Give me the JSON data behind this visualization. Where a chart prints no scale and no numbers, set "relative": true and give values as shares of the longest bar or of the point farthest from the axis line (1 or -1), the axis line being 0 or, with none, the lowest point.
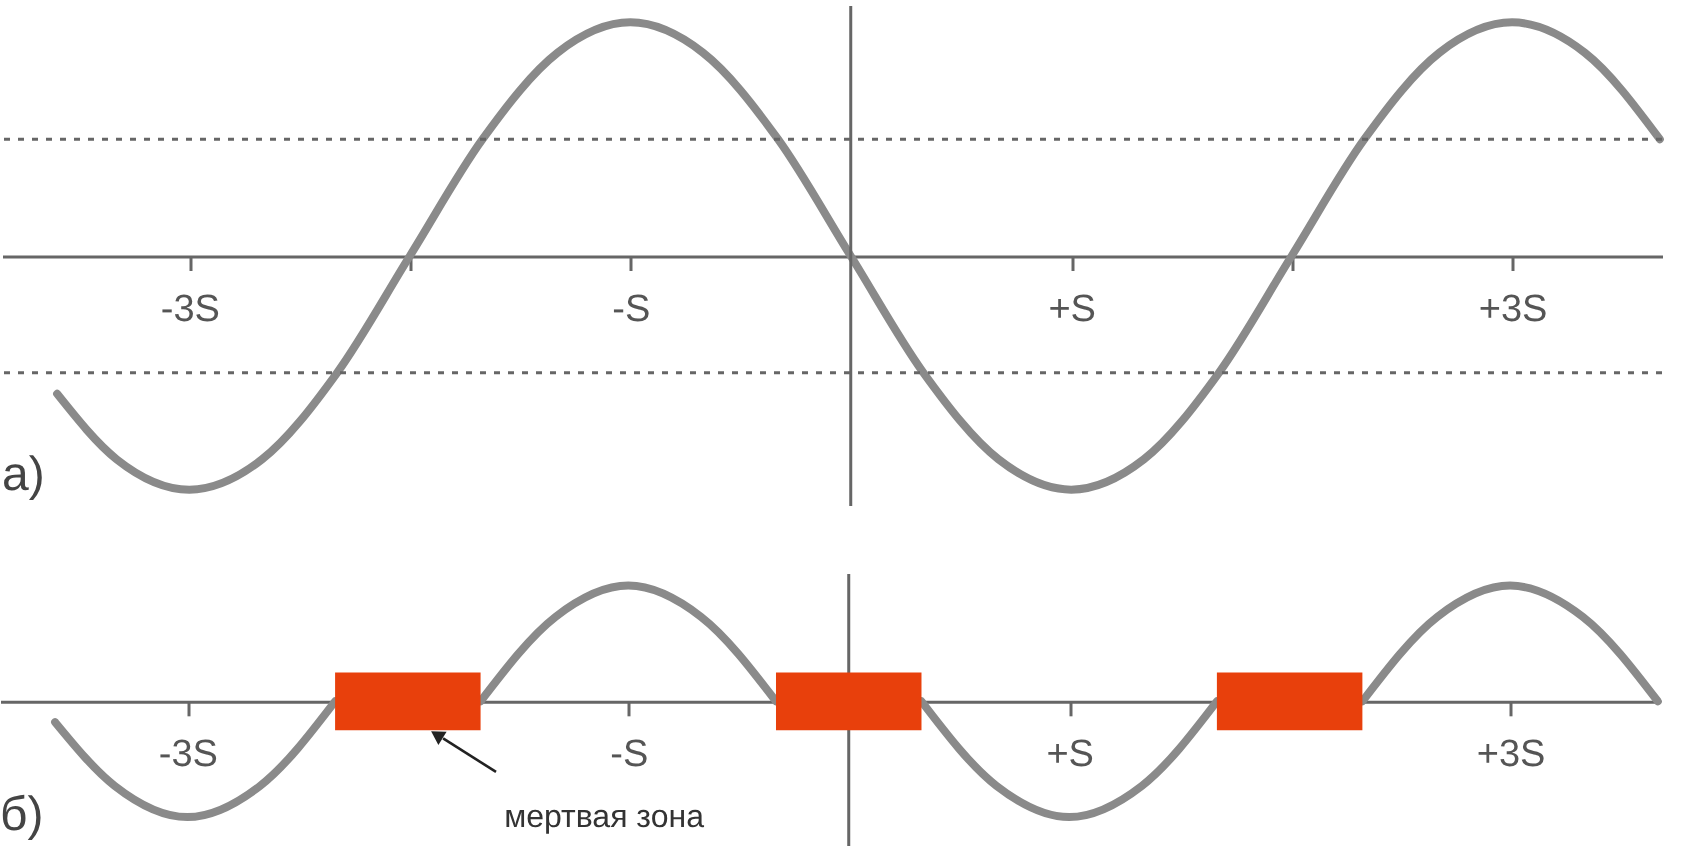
{
  "chart_data": [
    {
      "type": "line",
      "relative": true,
      "xlim": [
        -3.85,
        3.68
      ],
      "xticks": [
        {
          "value": -3,
          "label": "-3S"
        },
        {
          "value": -2,
          "label": null
        },
        {
          "value": -1,
          "label": "-S"
        },
        {
          "value": 1,
          "label": "+S"
        },
        {
          "value": 2,
          "label": null
        },
        {
          "value": 3,
          "label": "+3S"
        }
      ],
      "series": [
        {
          "color": "#8a8a8a",
          "x": [
            -3.6,
            -3.33,
            -3,
            -2.67,
            -2.33,
            -2,
            -1.67,
            -1.33,
            -1,
            -0.67,
            -0.33,
            0,
            0.33,
            0.67,
            1,
            1.33,
            1.67,
            2,
            2.33,
            2.67,
            3,
            3.33,
            3.67
          ],
          "values": [
            -0.59,
            -0.87,
            -1,
            -0.87,
            -0.5,
            0,
            0.5,
            0.87,
            1,
            0.87,
            0.5,
            0,
            -0.5,
            -0.87,
            -1,
            -0.87,
            -0.5,
            0,
            0.5,
            0.87,
            1,
            0.87,
            0.5
          ]
        }
      ],
      "ref_lines": [
        {
          "axis": "x",
          "value": 0,
          "color": "#666666",
          "line_style": "solid"
        },
        {
          "axis": "y",
          "value": 0.5,
          "color": "#666666",
          "line_style": "dotted"
        },
        {
          "axis": "y",
          "value": -0.5,
          "color": "#666666",
          "line_style": "dotted"
        }
      ],
      "annotations": [
        "а)"
      ]
    },
    {
      "type": "line",
      "relative": true,
      "xlim": [
        -3.85,
        3.68
      ],
      "xticks": [
        {
          "value": -3,
          "label": "-3S"
        },
        {
          "value": -2,
          "label": null
        },
        {
          "value": -1,
          "label": "-S"
        },
        {
          "value": 1,
          "label": "+S"
        },
        {
          "value": 2,
          "label": null
        },
        {
          "value": 3,
          "label": "+3S"
        }
      ],
      "series": [
        {
          "color": "#8a8a8a",
          "x": [
            -3.6,
            -3.33,
            -3,
            -2.67,
            -2.33,
            -2,
            -1.67,
            -1.33,
            -1,
            -0.67,
            -0.33,
            0,
            0.33,
            0.67,
            1,
            1.33,
            1.67,
            2,
            2.33,
            2.67,
            3,
            3.33,
            3.67
          ],
          "values": [
            -0.18,
            -0.73,
            -1,
            -0.73,
            0,
            null,
            0,
            0.73,
            1,
            0.73,
            0,
            null,
            0,
            -0.73,
            -1,
            -0.73,
            0,
            null,
            0,
            0.73,
            1,
            0.73,
            0
          ]
        }
      ],
      "ref_lines": [
        {
          "axis": "x",
          "value": 0,
          "color": "#666666",
          "line_style": "solid"
        }
      ],
      "bands": [
        {
          "axis": "x",
          "from": -2.33,
          "to": -1.67,
          "color": "#e8400c"
        },
        {
          "axis": "x",
          "from": -0.33,
          "to": 0.33,
          "color": "#e8400c"
        },
        {
          "axis": "x",
          "from": 1.67,
          "to": 2.33,
          "color": "#e8400c"
        }
      ],
      "annotations": [
        "б)",
        {
          "text": "мертвая зона",
          "x": -1.9,
          "y": -0.25
        }
      ]
    }
  ]
}
